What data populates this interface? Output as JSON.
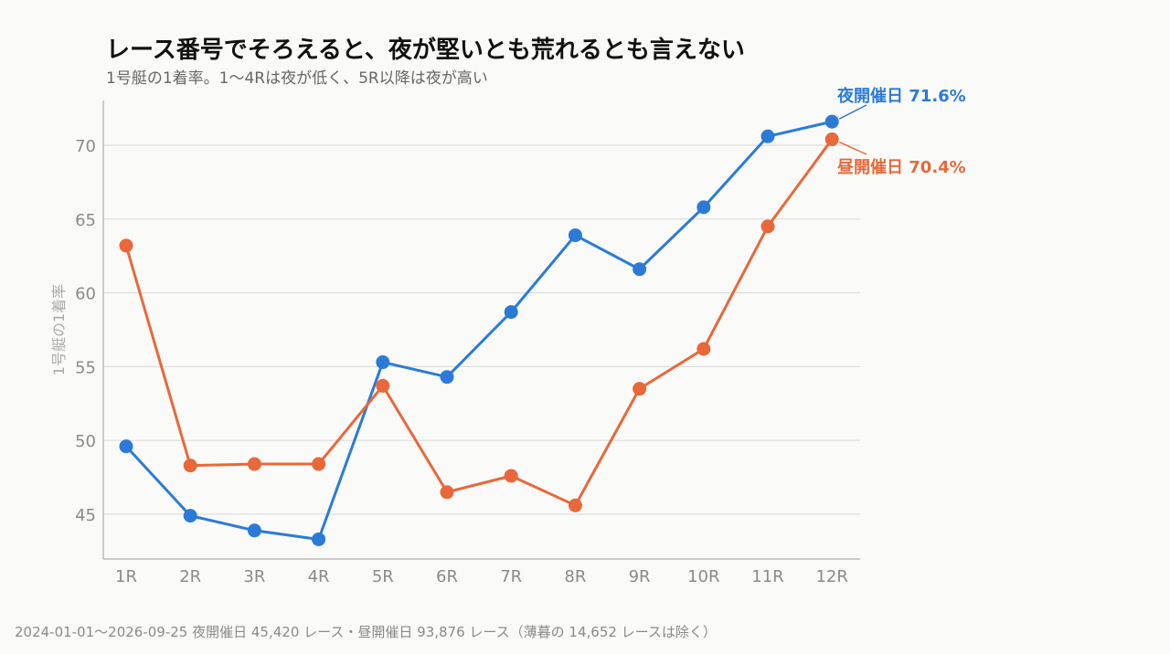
{
  "title": "レース番号でそろえると、夜が堅いとも荒れるとも言えない",
  "subtitle": "1号艇の1着率。1〜4Rは夜が低く、5R以降は夜が高い",
  "footer": "2024-01-01〜2026-09-25 夜開催日 45,420 レース・昼開催日 93,876 レース（薄暮の 14,652 レースは除く）",
  "colors": {
    "night": "#2b7bd6",
    "day": "#e8683a",
    "grid": "#dddddd",
    "axis": "#bbbbbb"
  },
  "chart_data": {
    "type": "line",
    "categories": [
      "1R",
      "2R",
      "3R",
      "4R",
      "5R",
      "6R",
      "7R",
      "8R",
      "9R",
      "10R",
      "11R",
      "12R"
    ],
    "ylabel": "1号艇の1着率",
    "xlabel": "",
    "ylim": [
      42,
      73
    ],
    "yticks": [
      45,
      50,
      55,
      60,
      65,
      70
    ],
    "grid": true,
    "series": [
      {
        "name": "夜開催日",
        "color": "#2b7bd6",
        "end_label": "夜開催日 71.6%",
        "values": [
          49.6,
          44.9,
          43.9,
          43.3,
          55.3,
          54.3,
          58.7,
          63.9,
          61.6,
          65.8,
          70.6,
          71.6
        ]
      },
      {
        "name": "昼開催日",
        "color": "#e8683a",
        "end_label": "昼開催日 70.4%",
        "values": [
          63.2,
          48.3,
          48.4,
          48.4,
          53.7,
          46.5,
          47.6,
          45.6,
          53.5,
          56.2,
          64.5,
          70.4
        ]
      }
    ]
  }
}
